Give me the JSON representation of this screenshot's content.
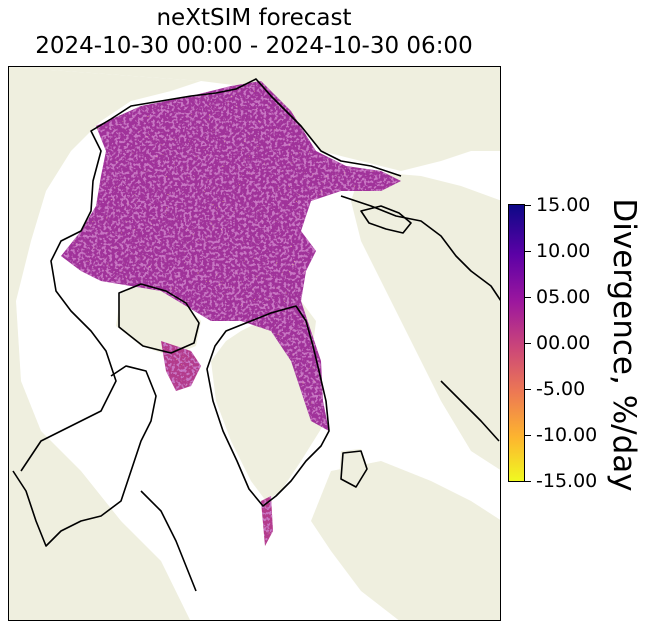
{
  "title": {
    "line1": "neXtSIM forecast",
    "line2": "2024-10-30 00:00 - 2024-10-30 06:00"
  },
  "colorbar": {
    "label": "Divergence, %/day",
    "ticks": [
      "15.00",
      "10.00",
      "05.00",
      "00.00",
      "-5.00",
      "-10.00",
      "-15.00"
    ],
    "range": [
      -15,
      15
    ],
    "colormap": "plasma",
    "colors": [
      "#0d0887",
      "#5c01a6",
      "#9c179e",
      "#cc4778",
      "#ed7953",
      "#fdb42f",
      "#f0f921"
    ]
  },
  "map": {
    "land_color": "#efefdf",
    "ocean_color": "#ffffff",
    "coastline_color": "#000000"
  }
}
